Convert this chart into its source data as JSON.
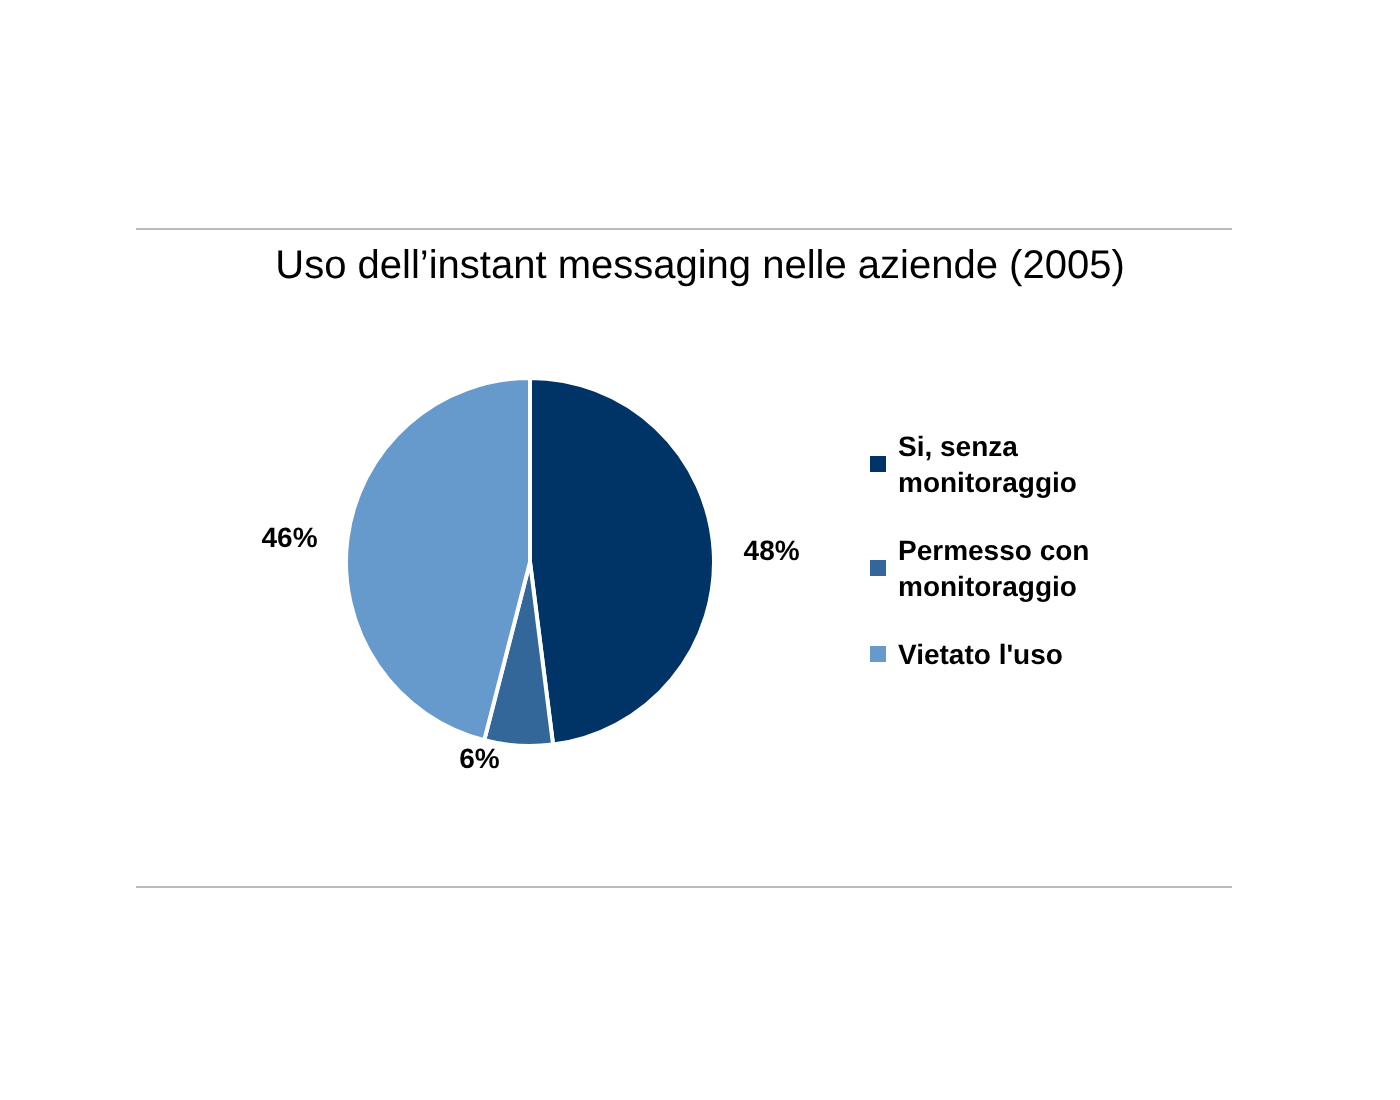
{
  "chart_data": {
    "type": "pie",
    "title": "Uso dell’instant messaging nelle aziende (2005)",
    "categories": [
      "Si, senza monitoraggio",
      "Permesso con monitoraggio",
      "Vietato l'uso"
    ],
    "values": [
      48,
      6,
      46
    ],
    "colors": [
      "#003366",
      "#336699",
      "#6699cc"
    ],
    "value_labels": [
      "48%",
      "6%",
      "46%"
    ],
    "legend": "right"
  }
}
